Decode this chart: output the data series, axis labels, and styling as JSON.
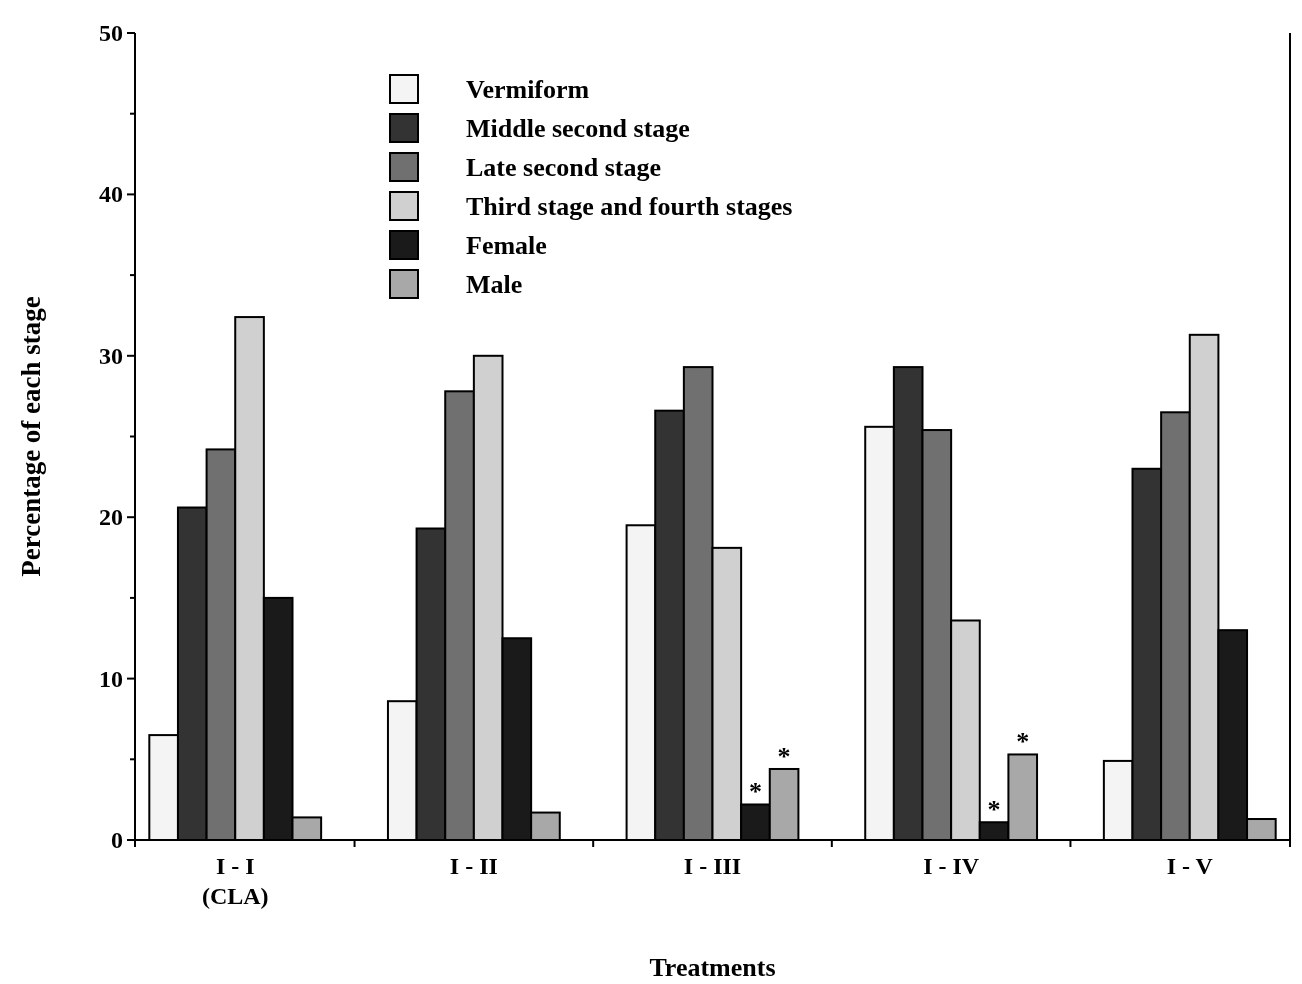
{
  "chart_data": {
    "type": "bar",
    "xlabel": "Treatments",
    "ylabel": "Percentage of each stage",
    "categories": [
      "I - I\n(CLA)",
      "I - II",
      "I - III",
      "I - IV",
      "I - V"
    ],
    "series": [
      {
        "name": "Vermiform",
        "color": "#f4f4f4",
        "values": [
          6.5,
          8.6,
          19.5,
          25.6,
          4.9
        ]
      },
      {
        "name": "Middle second stage",
        "color": "#333333",
        "values": [
          20.6,
          19.3,
          26.6,
          29.3,
          23.0
        ]
      },
      {
        "name": "Late second stage",
        "color": "#707070",
        "values": [
          24.2,
          27.8,
          29.3,
          25.4,
          26.5
        ]
      },
      {
        "name": "Third stage and fourth stages",
        "color": "#d0d0d0",
        "values": [
          32.4,
          30.0,
          18.1,
          13.6,
          31.3
        ]
      },
      {
        "name": "Female",
        "color": "#1a1a1a",
        "values": [
          15.0,
          12.5,
          2.2,
          1.1,
          13.0
        ]
      },
      {
        "name": "Male",
        "color": "#a8a8a8",
        "values": [
          1.4,
          1.7,
          4.4,
          5.3,
          1.3
        ]
      }
    ],
    "ylim": [
      0,
      50
    ],
    "yticks": [
      0,
      {
        "value": 5,
        "label": null
      },
      10,
      {
        "value": 15,
        "label": null
      },
      20,
      {
        "value": 25,
        "label": null
      },
      30,
      {
        "value": 35,
        "label": null
      },
      40,
      {
        "value": 45,
        "label": null
      },
      50
    ],
    "annotations": [
      {
        "text": "*",
        "x": "I - III",
        "y": 2.2
      },
      {
        "text": "*",
        "x": "I - III",
        "y": 4.4
      },
      {
        "text": "*",
        "x": "I - IV",
        "y": 1.1
      },
      {
        "text": "*",
        "x": "I - IV",
        "y": 5.3
      }
    ],
    "legend": "top",
    "grid": false
  }
}
